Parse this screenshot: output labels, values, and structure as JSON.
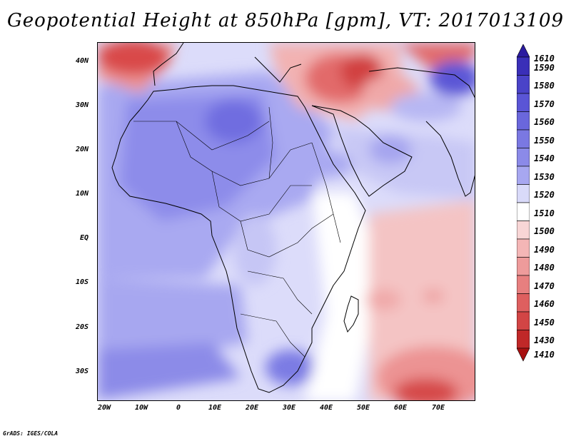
{
  "title": "Geopotential Height at 850hPa [gpm], VT: 2017013109",
  "credit": "GrADS: IGES/COLA",
  "map": {
    "lat_labels": [
      "40N",
      "30N",
      "20N",
      "10N",
      "EQ",
      "10S",
      "20S",
      "30S"
    ],
    "lon_labels": [
      "20W",
      "10W",
      "0",
      "10E",
      "20E",
      "30E",
      "40E",
      "50E",
      "60E",
      "70E"
    ],
    "colors": {
      "deep_blue": "#5a55d8",
      "mid_blue": "#7c7ce6",
      "light_blue": "#a9a9f1",
      "pale_blue": "#d8d9fa",
      "white": "#ffffff",
      "pale_red": "#f6cfcf",
      "light_red": "#ee9a9a",
      "mid_red": "#e05a5a",
      "deep_red": "#b21818"
    }
  },
  "legend": {
    "labels": [
      "1610",
      "1590",
      "1580",
      "1570",
      "1560",
      "1550",
      "1540",
      "1530",
      "1520",
      "1510",
      "1500",
      "1490",
      "1480",
      "1470",
      "1460",
      "1450",
      "1430",
      "1410"
    ],
    "colors": [
      "#2b1ba0",
      "#3a2fb8",
      "#4a43c8",
      "#5a55d6",
      "#6a67dc",
      "#7a78e2",
      "#8b8ae8",
      "#a7a7f0",
      "#d9daf9",
      "#ffffff",
      "#f8d6d6",
      "#f4b6b6",
      "#ee9b9b",
      "#e77f7f",
      "#de5f5f",
      "#d24545",
      "#c02828",
      "#a81010"
    ]
  }
}
